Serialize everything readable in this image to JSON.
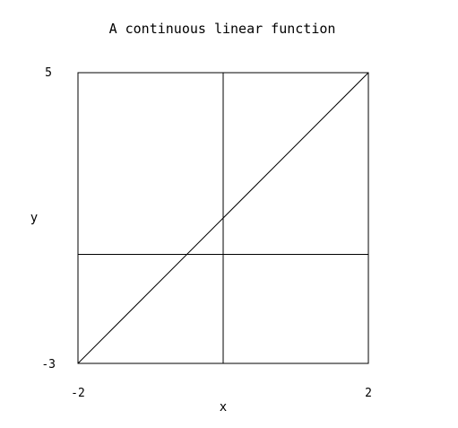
{
  "chart_data": {
    "type": "line",
    "title": "A continuous linear function",
    "xlabel": "x",
    "ylabel": "y",
    "xlim": [
      -2,
      2
    ],
    "ylim": [
      -3,
      5
    ],
    "x_ticks": [
      "-2",
      "2"
    ],
    "y_ticks": [
      "5",
      "-3"
    ],
    "grid_lines": {
      "x": [
        0
      ],
      "y": [
        0
      ]
    },
    "series": [
      {
        "x": [
          -2,
          2
        ],
        "y": [
          -3,
          5
        ]
      }
    ],
    "line_color": "#000000"
  }
}
